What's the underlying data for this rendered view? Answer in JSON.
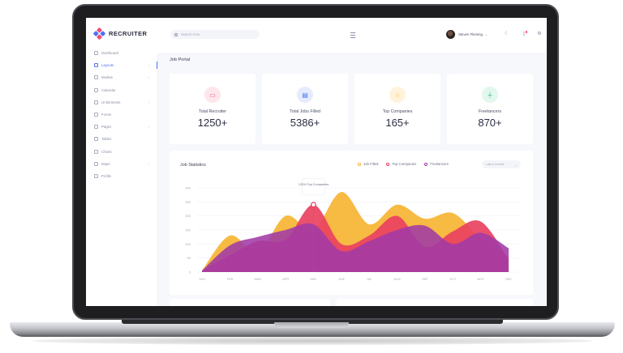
{
  "app": {
    "brand": "RECRUITER"
  },
  "sidebar": {
    "items": [
      {
        "label": "Dashboard",
        "chevron": false,
        "active": false
      },
      {
        "label": "Layouts",
        "chevron": true,
        "active": true
      },
      {
        "label": "Medias",
        "chevron": true,
        "active": false
      },
      {
        "label": "Calendar",
        "chevron": false,
        "active": false
      },
      {
        "label": "UI Elements",
        "chevron": true,
        "active": false
      },
      {
        "label": "Forms",
        "chevron": false,
        "active": false
      },
      {
        "label": "Pages",
        "chevron": true,
        "active": false
      },
      {
        "label": "Tables",
        "chevron": false,
        "active": false
      },
      {
        "label": "Charts",
        "chevron": false,
        "active": false
      },
      {
        "label": "Maps",
        "chevron": true,
        "active": false
      },
      {
        "label": "Profile",
        "chevron": false,
        "active": false
      }
    ]
  },
  "topbar": {
    "search_placeholder": "Search Here",
    "user_name": "Steven Fleming"
  },
  "page": {
    "title": "Job Portal"
  },
  "stats": [
    {
      "label": "Total Recruiter",
      "value": "1250+",
      "icon": "wallet-icon",
      "glyph": "▭",
      "bg": "#fde7ec",
      "fg": "#f0607e"
    },
    {
      "label": "Total Jobs Filled",
      "value": "5386+",
      "icon": "document-icon",
      "glyph": "▤",
      "bg": "#e6ecfd",
      "fg": "#4a72f5"
    },
    {
      "label": "Top Companies",
      "value": "165+",
      "icon": "star-icon",
      "glyph": "☆",
      "bg": "#fff3dc",
      "fg": "#f4b33c"
    },
    {
      "label": "Freelancers",
      "value": "870+",
      "icon": "plug-icon",
      "glyph": "⏚",
      "bg": "#e2f7ee",
      "fg": "#2fbf83"
    }
  ],
  "colors": {
    "accent": "#4a72f5",
    "series_yellow": "#f7b638",
    "series_red": "#e9415f",
    "series_purple": "#a23aa6"
  },
  "chart_data": {
    "type": "area",
    "title": "Job Statistics",
    "dropdown_label": "Last 6 months",
    "tooltip": "125% Top Companies",
    "categories": [
      "JAN",
      "FEB",
      "MAR",
      "APR",
      "MAY",
      "JUN",
      "JUL",
      "AUG",
      "SEP",
      "OCT",
      "NOV",
      "DEC"
    ],
    "ylim": [
      0,
      300
    ],
    "yticks": [
      0,
      50,
      100,
      150,
      200,
      250,
      300
    ],
    "series": [
      {
        "name": "Job Filled",
        "color": "#f7b638",
        "values": [
          5,
          130,
          70,
          200,
          150,
          285,
          170,
          240,
          190,
          210,
          120,
          55
        ]
      },
      {
        "name": "Top Companies",
        "color": "#e9415f",
        "values": [
          5,
          60,
          110,
          115,
          240,
          100,
          130,
          200,
          90,
          145,
          180,
          45
        ]
      },
      {
        "name": "Freelancers",
        "color": "#a23aa6",
        "values": [
          5,
          95,
          125,
          150,
          170,
          75,
          110,
          150,
          165,
          100,
          140,
          85
        ]
      }
    ]
  }
}
